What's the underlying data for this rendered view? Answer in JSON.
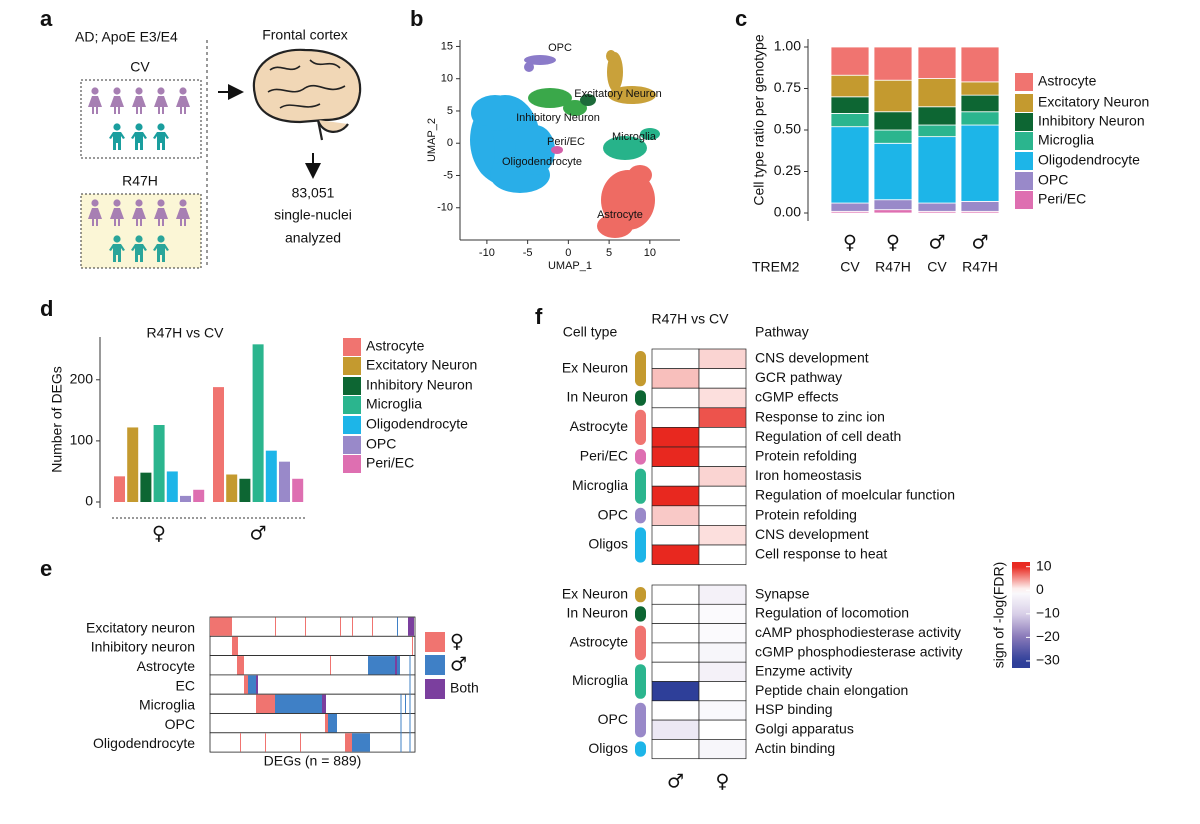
{
  "panel_labels": [
    "a",
    "b",
    "c",
    "d",
    "e",
    "f"
  ],
  "schematic": {
    "cohort": "AD; ApoE E3/E4",
    "groups": [
      "CV",
      "R47H"
    ],
    "region": "Frontal cortex",
    "count": "83,051",
    "count_lines": [
      "single-nuclei",
      "analyzed"
    ]
  },
  "chart_data": [
    {
      "type": "scatter",
      "xlabel": "UMAP_1",
      "ylabel": "UMAP_2",
      "xlim": [
        -13.3,
        13.7
      ],
      "xticks": [
        -10,
        -5,
        0,
        5,
        10
      ],
      "ylim": [
        -15,
        16
      ],
      "yticks": [
        -10,
        -5,
        0,
        5,
        10,
        15
      ],
      "clusters": [
        "OPC",
        "Excitatory Neuron",
        "Inhibitory Neuron",
        "Microglia",
        "Peri/EC",
        "Oligodendrocyte",
        "Astrocyte"
      ]
    },
    {
      "type": "bar",
      "stacked": true,
      "ylabel": "Cell type ratio per genotype",
      "category_title": "TREM2",
      "categories": [
        "CV",
        "R47H",
        "CV",
        "R47H"
      ],
      "sex": [
        "♀",
        "♀",
        "♂",
        "♂"
      ],
      "ylim": [
        0,
        1
      ],
      "yticks": [
        {
          "value": 0,
          "label": "0.00"
        },
        {
          "value": 0.25,
          "label": "0.25"
        },
        {
          "value": 0.5,
          "label": "0.50"
        },
        {
          "value": 0.75,
          "label": "0.75"
        },
        {
          "value": 1,
          "label": "1.00"
        }
      ],
      "series": [
        {
          "name": "Astrocyte",
          "color": "#f07470",
          "values": [
            0.17,
            0.2,
            0.19,
            0.21
          ]
        },
        {
          "name": "Excitatory Neuron",
          "color": "#c49a2f",
          "values": [
            0.13,
            0.19,
            0.17,
            0.08
          ]
        },
        {
          "name": "Inhibitory Neuron",
          "color": "#0d6633",
          "values": [
            0.1,
            0.11,
            0.11,
            0.1
          ]
        },
        {
          "name": "Microglia",
          "color": "#2bb58e",
          "values": [
            0.08,
            0.08,
            0.07,
            0.08
          ]
        },
        {
          "name": "Oligodendrocyte",
          "color": "#1db5e8",
          "values": [
            0.46,
            0.34,
            0.4,
            0.46
          ]
        },
        {
          "name": "OPC",
          "color": "#9989c9",
          "values": [
            0.05,
            0.06,
            0.05,
            0.06
          ]
        },
        {
          "name": "Peri/EC",
          "color": "#de6fb1",
          "values": [
            0.01,
            0.02,
            0.01,
            0.01
          ]
        }
      ]
    },
    {
      "type": "bar",
      "title": "R47H vs CV",
      "ylabel": "Number of DEGs",
      "categories": [
        "♀",
        "♂"
      ],
      "ylim": [
        0,
        270
      ],
      "yticks": [
        0,
        100,
        200
      ],
      "series": [
        {
          "name": "Astrocyte",
          "color": "#f07470",
          "values": [
            42,
            188
          ]
        },
        {
          "name": "Excitatory Neuron",
          "color": "#c49a2f",
          "values": [
            122,
            45
          ]
        },
        {
          "name": "Inhibitory Neuron",
          "color": "#0d6633",
          "values": [
            48,
            38
          ]
        },
        {
          "name": "Microglia",
          "color": "#2bb58e",
          "values": [
            126,
            258
          ]
        },
        {
          "name": "Oligodendrocyte",
          "color": "#1db5e8",
          "values": [
            50,
            84
          ]
        },
        {
          "name": "OPC",
          "color": "#9989c9",
          "values": [
            10,
            66
          ]
        },
        {
          "name": "Peri/EC",
          "color": "#de6fb1",
          "values": [
            20,
            38
          ]
        }
      ]
    },
    {
      "type": "strip",
      "xlabel": "DEGs (n = 889)",
      "rows": [
        "Excitatory neuron",
        "Inhibitory neuron",
        "Astrocyte",
        "EC",
        "Microglia",
        "OPC",
        "Oligodendrocyte"
      ],
      "legend": [
        {
          "name": "♀",
          "color": "#f07470"
        },
        {
          "name": "♂",
          "color": "#3f80c6"
        },
        {
          "name": "Both",
          "color": "#7b3f9e"
        }
      ]
    },
    {
      "type": "heatmap",
      "title": "R47H vs CV",
      "row_header": "Cell type",
      "pathway_header": "Pathway",
      "columns": [
        "♂",
        "♀"
      ],
      "colorbar_title": "sign of -log(FDR)",
      "clim": [
        -33,
        12
      ],
      "cticks": [
        10,
        0,
        {
          "value": -10,
          "label": "−10"
        },
        {
          "value": -20,
          "label": "−20"
        },
        {
          "value": -30,
          "label": "−30"
        }
      ],
      "blocks": [
        {
          "groups": [
            {
              "name": "Ex Neuron",
              "color": "#c49a2f",
              "rows": [
                {
                  "pathway": "CNS development",
                  "values": [
                    0,
                    2
                  ]
                },
                {
                  "pathway": "GCR pathway",
                  "values": [
                    3,
                    0
                  ]
                }
              ]
            },
            {
              "name": "In Neuron",
              "color": "#0d6633",
              "rows": [
                {
                  "pathway": "cGMP effects",
                  "values": [
                    0,
                    1.5
                  ]
                }
              ]
            },
            {
              "name": "Astrocyte",
              "color": "#f07470",
              "rows": [
                {
                  "pathway": "Response to zinc ion",
                  "values": [
                    0,
                    8
                  ]
                },
                {
                  "pathway": "Regulation of cell death",
                  "values": [
                    10,
                    0
                  ]
                }
              ]
            },
            {
              "name": "Peri/EC",
              "color": "#de6fb1",
              "rows": [
                {
                  "pathway": "Protein refolding",
                  "values": [
                    10,
                    0
                  ]
                }
              ]
            },
            {
              "name": "Microglia",
              "color": "#2bb58e",
              "rows": [
                {
                  "pathway": "Iron homeostasis",
                  "values": [
                    0,
                    2
                  ]
                },
                {
                  "pathway": "Regulation of moelcular function",
                  "values": [
                    10,
                    0
                  ]
                }
              ]
            },
            {
              "name": "OPC",
              "color": "#9989c9",
              "rows": [
                {
                  "pathway": "Protein refolding",
                  "values": [
                    2.5,
                    0
                  ]
                }
              ]
            },
            {
              "name": "Oligos",
              "color": "#1db5e8",
              "rows": [
                {
                  "pathway": "CNS development",
                  "values": [
                    0,
                    1.5
                  ]
                },
                {
                  "pathway": "Cell response to heat",
                  "values": [
                    10,
                    0
                  ]
                }
              ]
            }
          ]
        },
        {
          "groups": [
            {
              "name": "Ex Neuron",
              "color": "#c49a2f",
              "rows": [
                {
                  "pathway": "Synapse",
                  "values": [
                    0,
                    -3
                  ]
                }
              ]
            },
            {
              "name": "In Neuron",
              "color": "#0d6633",
              "rows": [
                {
                  "pathway": "Regulation of locomotion",
                  "values": [
                    0,
                    -1
                  ]
                }
              ]
            },
            {
              "name": "Astrocyte",
              "color": "#f07470",
              "rows": [
                {
                  "pathway": "cAMP phosphodiesterase activity",
                  "values": [
                    0,
                    -1
                  ]
                },
                {
                  "pathway": "cGMP phosphodiesterase activity",
                  "values": [
                    0,
                    -2
                  ]
                }
              ]
            },
            {
              "name": "Microglia",
              "color": "#2bb58e",
              "rows": [
                {
                  "pathway": "Enzyme activity",
                  "values": [
                    0,
                    -3
                  ]
                },
                {
                  "pathway": "Peptide chain elongation",
                  "values": [
                    -30,
                    0
                  ]
                }
              ]
            },
            {
              "name": "OPC",
              "color": "#9989c9",
              "rows": [
                {
                  "pathway": "HSP binding",
                  "values": [
                    0,
                    -1.5
                  ]
                },
                {
                  "pathway": "Golgi apparatus",
                  "values": [
                    -5,
                    0
                  ]
                }
              ]
            },
            {
              "name": "Oligos",
              "color": "#1db5e8",
              "rows": [
                {
                  "pathway": "Actin binding",
                  "values": [
                    0,
                    -2
                  ]
                }
              ]
            }
          ]
        }
      ]
    }
  ]
}
